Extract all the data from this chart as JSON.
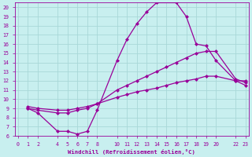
{
  "xlabel": "Windchill (Refroidissement éolien,°C)",
  "bg_color": "#c8efef",
  "grid_color": "#a8d8d8",
  "line_color": "#990099",
  "line1_x": [
    1,
    2,
    4,
    5,
    6,
    7,
    8,
    10,
    11,
    12,
    13,
    14,
    16,
    17,
    18,
    19,
    20,
    22,
    23
  ],
  "line1_y": [
    9.0,
    8.5,
    6.5,
    6.5,
    6.2,
    6.5,
    8.8,
    14.2,
    16.5,
    18.2,
    19.5,
    20.5,
    20.5,
    19.0,
    16.0,
    15.8,
    14.2,
    12.0,
    11.5
  ],
  "line2_x": [
    1,
    2,
    4,
    5,
    6,
    7,
    8,
    10,
    11,
    12,
    13,
    14,
    15,
    16,
    17,
    18,
    19,
    20,
    22,
    23
  ],
  "line2_y": [
    9.0,
    8.8,
    8.5,
    8.5,
    8.8,
    9.0,
    9.5,
    11.0,
    11.5,
    12.0,
    12.5,
    13.0,
    13.5,
    14.0,
    14.5,
    15.0,
    15.2,
    15.2,
    12.2,
    11.8
  ],
  "line3_x": [
    1,
    2,
    4,
    5,
    6,
    7,
    8,
    10,
    11,
    12,
    13,
    14,
    15,
    16,
    17,
    18,
    19,
    20,
    22,
    23
  ],
  "line3_y": [
    9.2,
    9.0,
    8.8,
    8.8,
    9.0,
    9.2,
    9.5,
    10.2,
    10.5,
    10.8,
    11.0,
    11.2,
    11.5,
    11.8,
    12.0,
    12.2,
    12.5,
    12.5,
    12.0,
    12.0
  ],
  "xlim": [
    -0.3,
    23.3
  ],
  "ylim": [
    6,
    20.5
  ],
  "xticks": [
    0,
    1,
    2,
    4,
    5,
    6,
    7,
    8,
    10,
    11,
    12,
    13,
    14,
    15,
    16,
    17,
    18,
    19,
    20,
    22,
    23
  ],
  "yticks": [
    6,
    7,
    8,
    9,
    10,
    11,
    12,
    13,
    14,
    15,
    16,
    17,
    18,
    19,
    20
  ]
}
